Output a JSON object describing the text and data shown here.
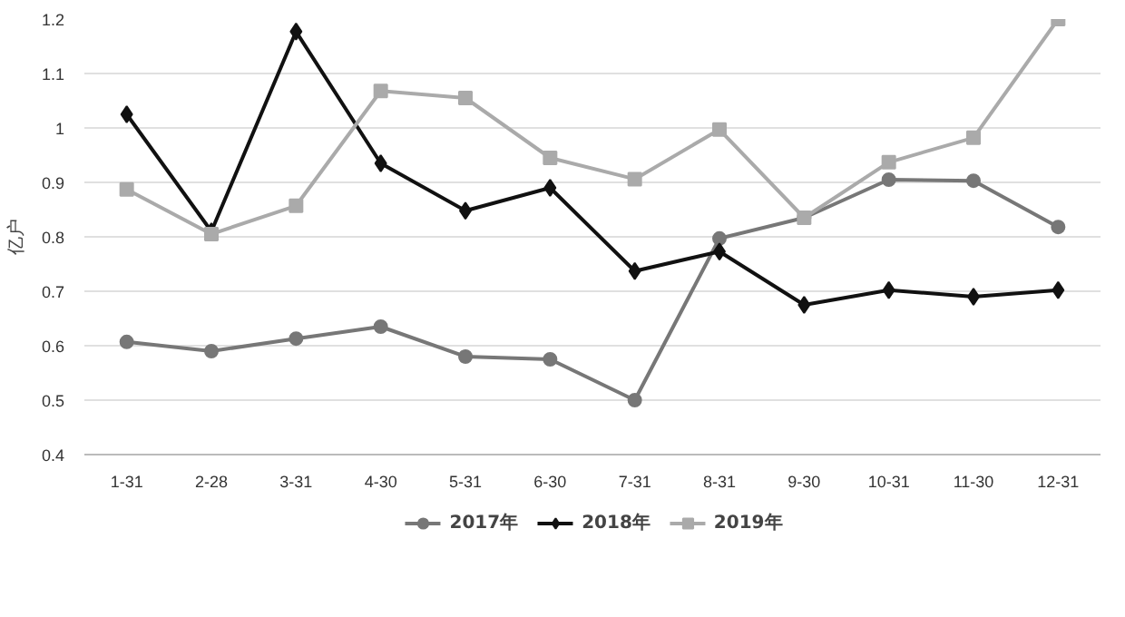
{
  "chart_data": {
    "type": "line",
    "ylabel": "亿户",
    "categories": [
      "1-31",
      "2-28",
      "3-31",
      "4-30",
      "5-31",
      "6-30",
      "7-31",
      "8-31",
      "9-30",
      "10-31",
      "11-30",
      "12-31"
    ],
    "series": [
      {
        "name": "2017年",
        "color": "#777777",
        "marker": "circle",
        "values": [
          0.607,
          0.59,
          0.613,
          0.635,
          0.58,
          0.575,
          0.5,
          0.797,
          0.835,
          0.905,
          0.903,
          0.818
        ]
      },
      {
        "name": "2018年",
        "color": "#111111",
        "marker": "diamond",
        "values": [
          1.025,
          0.81,
          1.177,
          0.935,
          0.848,
          0.89,
          0.737,
          0.773,
          0.675,
          0.702,
          0.69,
          0.702
        ]
      },
      {
        "name": "2019年",
        "color": "#aaaaaa",
        "marker": "square",
        "values": [
          0.887,
          0.805,
          0.857,
          1.068,
          1.055,
          0.945,
          0.906,
          0.997,
          0.835,
          0.937,
          0.982,
          1.2
        ]
      }
    ],
    "ylim": [
      0.4,
      1.2
    ],
    "yticks": [
      {
        "value": 0.4,
        "label": "0.4"
      },
      {
        "value": 0.5,
        "label": "0.5"
      },
      {
        "value": 0.6,
        "label": "0.6"
      },
      {
        "value": 0.7,
        "label": "0.7"
      },
      {
        "value": 0.8,
        "label": "0.8"
      },
      {
        "value": 0.9,
        "label": "0.9"
      },
      {
        "value": 1,
        "label": "1"
      },
      {
        "value": 1.1,
        "label": "1.1"
      },
      {
        "value": 1.2,
        "label": "1.2"
      }
    ],
    "grid": "y",
    "legend": "bottom"
  }
}
